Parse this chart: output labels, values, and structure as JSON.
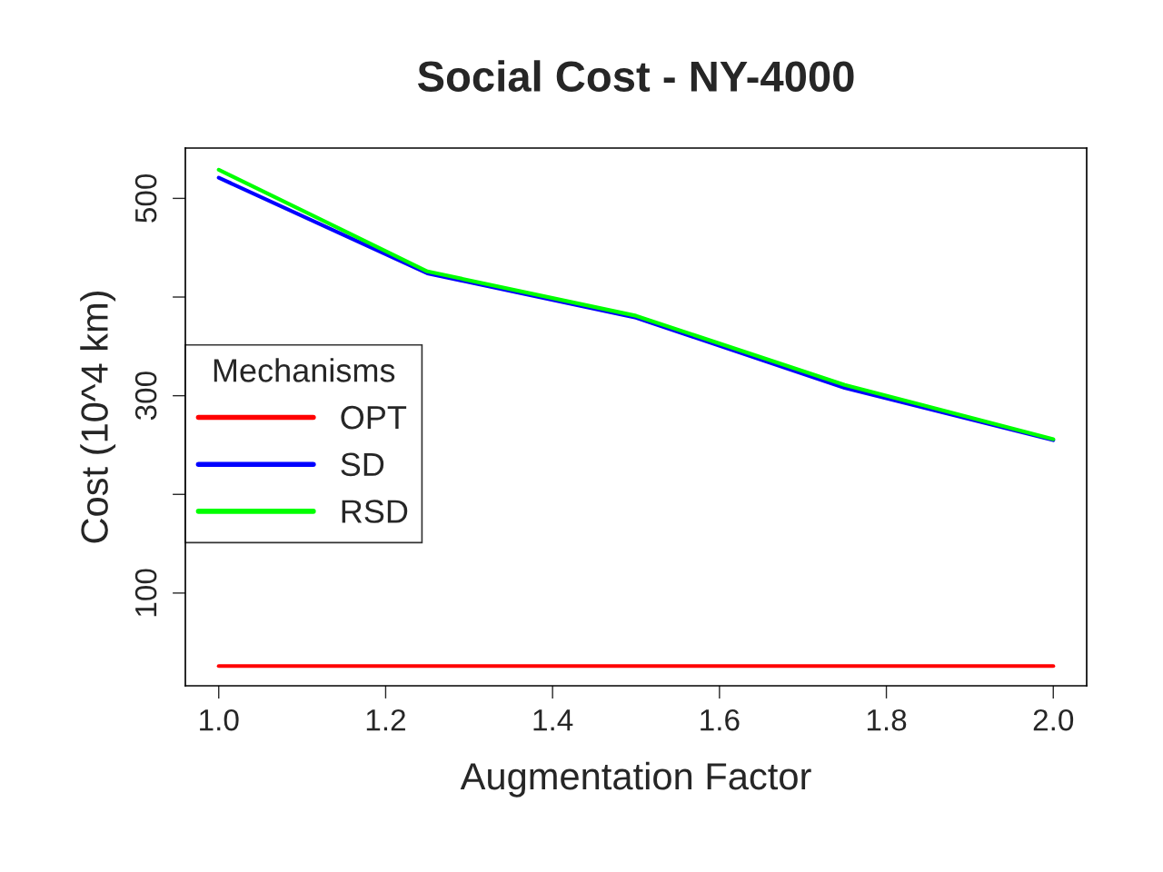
{
  "chart_data": {
    "type": "line",
    "title": "Social Cost - NY-4000",
    "xlabel": "Augmentation Factor",
    "ylabel": "Cost (10^4 km)",
    "x": [
      1.0,
      1.25,
      1.5,
      1.75,
      2.0
    ],
    "series": [
      {
        "name": "OPT",
        "color": "#ff0000",
        "values": [
          26,
          26,
          26,
          26,
          26
        ]
      },
      {
        "name": "SD",
        "color": "#0000ff",
        "values": [
          521,
          424,
          379,
          308,
          255
        ]
      },
      {
        "name": "RSD",
        "color": "#00ff00",
        "values": [
          529,
          426,
          381,
          311,
          256
        ]
      }
    ],
    "legend_title": "Mechanisms",
    "legend": "left",
    "grid": false,
    "line_style": "solid",
    "marker": "none",
    "xlim": [
      0.96,
      2.04
    ],
    "xticks": [
      {
        "value": 1.0,
        "label": "1.0"
      },
      1.2,
      1.4,
      1.6,
      1.8,
      {
        "value": 2.0,
        "label": "2.0"
      }
    ],
    "ylim": [
      6,
      551
    ],
    "yticks": [
      100,
      {
        "value": 200,
        "label": null
      },
      300,
      {
        "value": 400,
        "label": null
      },
      500
    ]
  }
}
